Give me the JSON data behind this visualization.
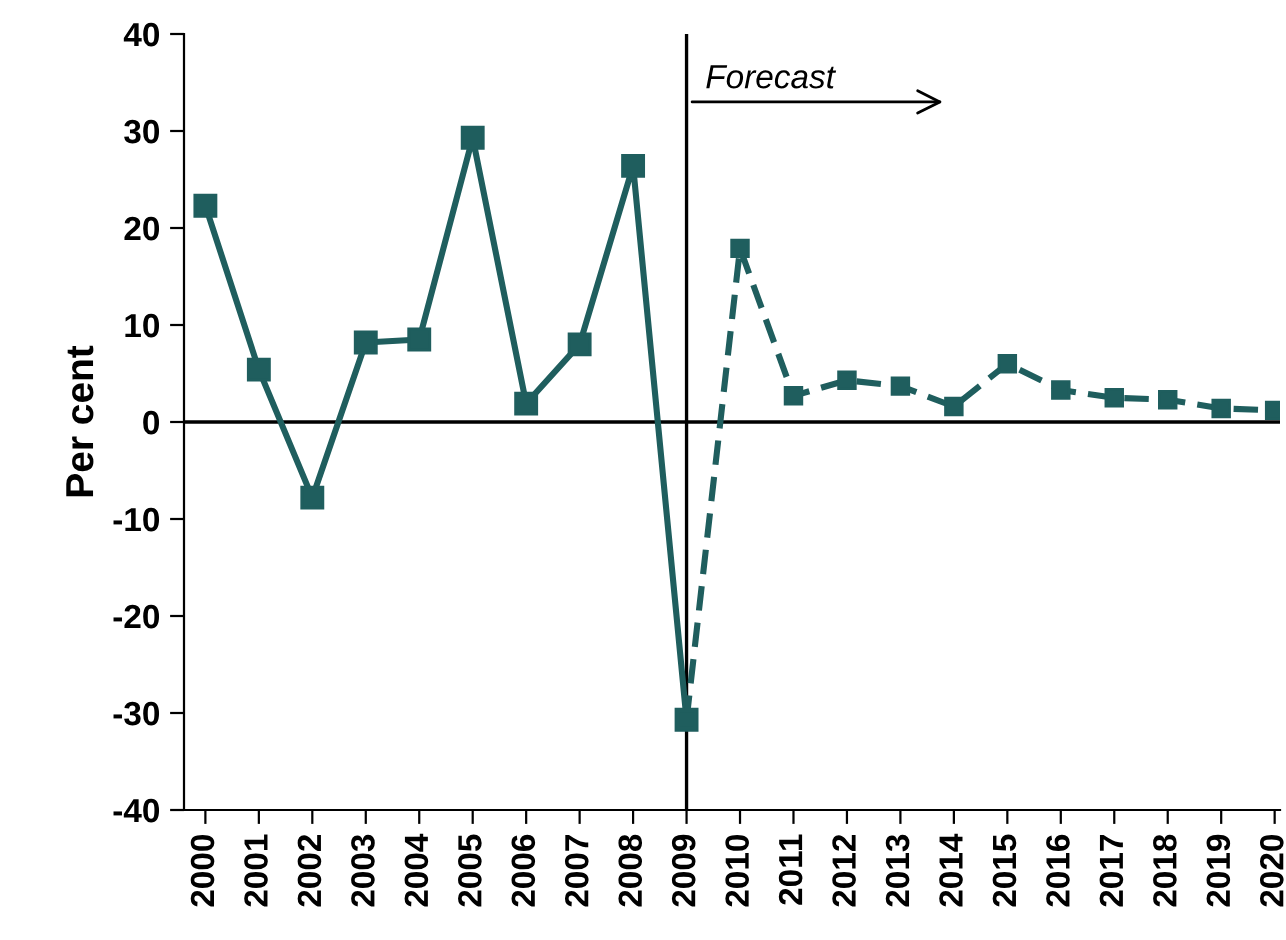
{
  "chart_data": {
    "type": "line",
    "ylabel": "Per cent",
    "xlim": [
      1999.6,
      2020.1
    ],
    "ylim": [
      -40,
      40
    ],
    "xticks": [
      2000,
      2001,
      2002,
      2003,
      2004,
      2005,
      2006,
      2007,
      2008,
      2009,
      2010,
      2011,
      2012,
      2013,
      2014,
      2015,
      2016,
      2017,
      2018,
      2019,
      2020
    ],
    "yticks": [
      -40,
      -30,
      -20,
      -10,
      0,
      10,
      20,
      30,
      40
    ],
    "grid": false,
    "marker": "square",
    "series": [
      {
        "x": [
          2000,
          2001,
          2002,
          2003,
          2004,
          2005,
          2006,
          2007,
          2008,
          2009
        ],
        "values": [
          22.3,
          5.4,
          -7.8,
          8.2,
          8.5,
          29.3,
          1.9,
          8.0,
          26.4,
          -30.7
        ],
        "color": "#1f5e5e",
        "line_style": "solid"
      },
      {
        "x": [
          2009,
          2010,
          2011,
          2012,
          2013,
          2014,
          2015,
          2016,
          2017,
          2018,
          2019,
          2020
        ],
        "values": [
          -30.7,
          17.9,
          2.7,
          4.3,
          3.7,
          1.6,
          6.0,
          3.3,
          2.5,
          2.3,
          1.4,
          1.2
        ],
        "color": "#1f5e5e",
        "line_style": "dashed"
      }
    ],
    "ref_lines": [
      {
        "axis": "x",
        "value": 2009,
        "label": "Forecast",
        "color": "#000000"
      },
      {
        "axis": "y",
        "value": 0,
        "label": null,
        "color": "#000000"
      }
    ]
  }
}
